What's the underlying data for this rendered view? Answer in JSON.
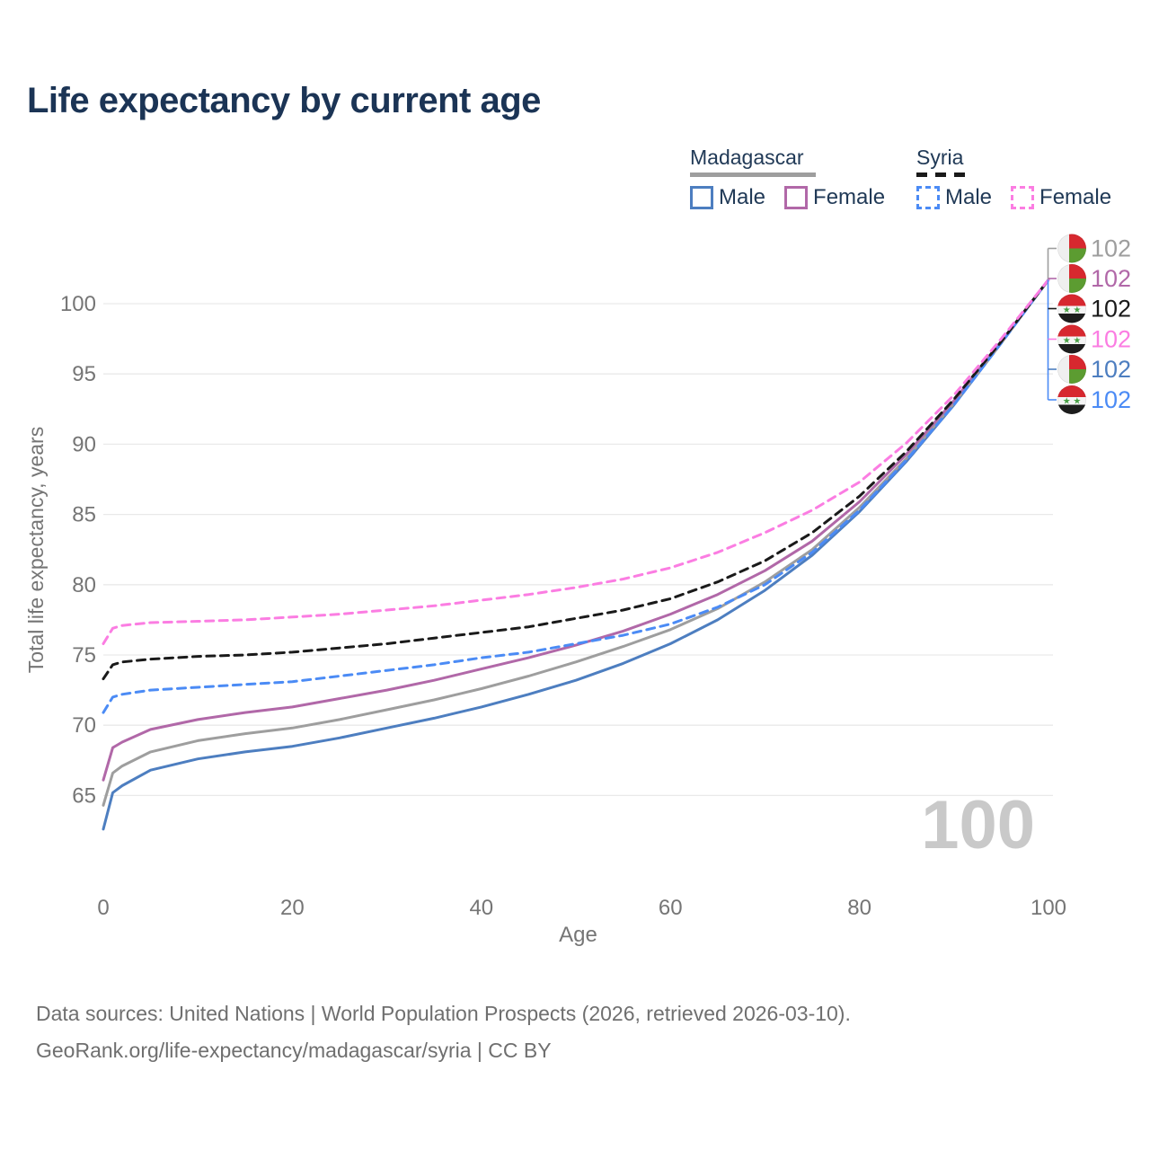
{
  "title": "Life expectancy by current age",
  "legend": {
    "groups": [
      {
        "title": "Madagascar",
        "underline_style": "solid",
        "underline_color": "#9e9e9e",
        "underline_width": 140,
        "items": [
          {
            "label": "Male",
            "swatch": "solid",
            "color": "#4d7ec0"
          },
          {
            "label": "Female",
            "swatch": "solid",
            "color": "#b168a8"
          }
        ]
      },
      {
        "title": "Syria",
        "underline_style": "dashed",
        "underline_color": "#1a1a1a",
        "underline_width": 58,
        "items": [
          {
            "label": "Male",
            "swatch": "dashed",
            "color": "#4b8bf5"
          },
          {
            "label": "Female",
            "swatch": "dashed",
            "color": "#fb7de2"
          }
        ]
      }
    ]
  },
  "watermark_age_counter": "100",
  "footer": {
    "line1": "Data sources: United Nations | World Population Prospects (2026, retrieved 2026-03-10).",
    "line2": "GeoRank.org/life-expectancy/madagascar/syria | CC BY"
  },
  "chart_data": {
    "type": "line",
    "title": "Life expectancy by current age",
    "xlabel": "Age",
    "ylabel": "Total life expectancy, years",
    "xlim": [
      0,
      100
    ],
    "ylim": [
      62,
      102
    ],
    "xticks": [
      0,
      20,
      40,
      60,
      80,
      100
    ],
    "yticks": [
      65,
      70,
      75,
      80,
      85,
      90,
      95,
      100
    ],
    "grid": "horizontal",
    "legend_position": "top-right",
    "x": [
      0,
      1,
      2,
      5,
      10,
      15,
      20,
      25,
      30,
      35,
      40,
      45,
      50,
      55,
      60,
      65,
      70,
      75,
      80,
      85,
      90,
      95,
      100
    ],
    "series": [
      {
        "id": "madagascar-male",
        "name": "Madagascar Male",
        "country": "Madagascar",
        "sex": "Male",
        "style": "solid",
        "color": "#4d7ec0",
        "flag": "madagascar",
        "end_label": "102",
        "end_row": 4,
        "values": [
          62.6,
          65.2,
          65.7,
          66.8,
          67.6,
          68.1,
          68.5,
          69.1,
          69.8,
          70.5,
          71.3,
          72.2,
          73.2,
          74.4,
          75.8,
          77.5,
          79.6,
          82.1,
          85.2,
          88.8,
          92.8,
          97.2,
          101.7
        ]
      },
      {
        "id": "madagascar-overall",
        "name": "Madagascar",
        "country": "Madagascar",
        "sex": "All",
        "style": "solid",
        "color": "#9e9e9e",
        "flag": "madagascar",
        "end_label": "102",
        "end_row": 0,
        "values": [
          64.3,
          66.6,
          67.1,
          68.1,
          68.9,
          69.4,
          69.8,
          70.4,
          71.1,
          71.8,
          72.6,
          73.5,
          74.5,
          75.6,
          76.8,
          78.3,
          80.2,
          82.5,
          85.5,
          89.0,
          92.9,
          97.2,
          101.7
        ]
      },
      {
        "id": "madagascar-female",
        "name": "Madagascar Female",
        "country": "Madagascar",
        "sex": "Female",
        "style": "solid",
        "color": "#b168a8",
        "flag": "madagascar",
        "end_label": "102",
        "end_row": 1,
        "values": [
          66.1,
          68.4,
          68.8,
          69.7,
          70.4,
          70.9,
          71.3,
          71.9,
          72.5,
          73.2,
          74.0,
          74.8,
          75.7,
          76.7,
          77.9,
          79.3,
          81.0,
          83.1,
          85.9,
          89.3,
          93.1,
          97.3,
          101.7
        ]
      },
      {
        "id": "syria-male",
        "name": "Syria Male",
        "country": "Syria",
        "sex": "Male",
        "style": "dashed",
        "color": "#4b8bf5",
        "flag": "syria",
        "end_label": "102",
        "end_row": 5,
        "values": [
          70.9,
          72.0,
          72.2,
          72.5,
          72.7,
          72.9,
          73.1,
          73.5,
          73.9,
          74.3,
          74.8,
          75.2,
          75.8,
          76.4,
          77.2,
          78.4,
          80.0,
          82.3,
          85.3,
          88.9,
          92.8,
          97.2,
          101.7
        ]
      },
      {
        "id": "syria-overall",
        "name": "Syria",
        "country": "Syria",
        "sex": "All",
        "style": "dashed",
        "color": "#1a1a1a",
        "flag": "syria",
        "end_label": "102",
        "end_row": 2,
        "values": [
          73.3,
          74.3,
          74.5,
          74.7,
          74.9,
          75.0,
          75.2,
          75.5,
          75.8,
          76.2,
          76.6,
          77.0,
          77.6,
          78.2,
          79.0,
          80.2,
          81.7,
          83.7,
          86.3,
          89.5,
          93.2,
          97.3,
          101.7
        ]
      },
      {
        "id": "syria-female",
        "name": "Syria Female",
        "country": "Syria",
        "sex": "Female",
        "style": "dashed",
        "color": "#fb7de2",
        "flag": "syria",
        "end_label": "102",
        "end_row": 3,
        "values": [
          75.8,
          76.9,
          77.1,
          77.3,
          77.4,
          77.5,
          77.7,
          77.9,
          78.2,
          78.5,
          78.9,
          79.3,
          79.8,
          80.4,
          81.2,
          82.3,
          83.7,
          85.3,
          87.3,
          90.1,
          93.5,
          97.5,
          101.7
        ]
      }
    ],
    "flag_colors": {
      "madagascar": {
        "white": "#efefef",
        "red": "#d7282f",
        "green": "#5c9c31"
      },
      "syria": {
        "red": "#d7282f",
        "white": "#f5f5f5",
        "black": "#1d1d1d",
        "star": "#4aa147"
      }
    },
    "axis_text_color": "#757575",
    "gridline_color": "#e9e9e9",
    "watermark_color": "#c9c9c9"
  }
}
